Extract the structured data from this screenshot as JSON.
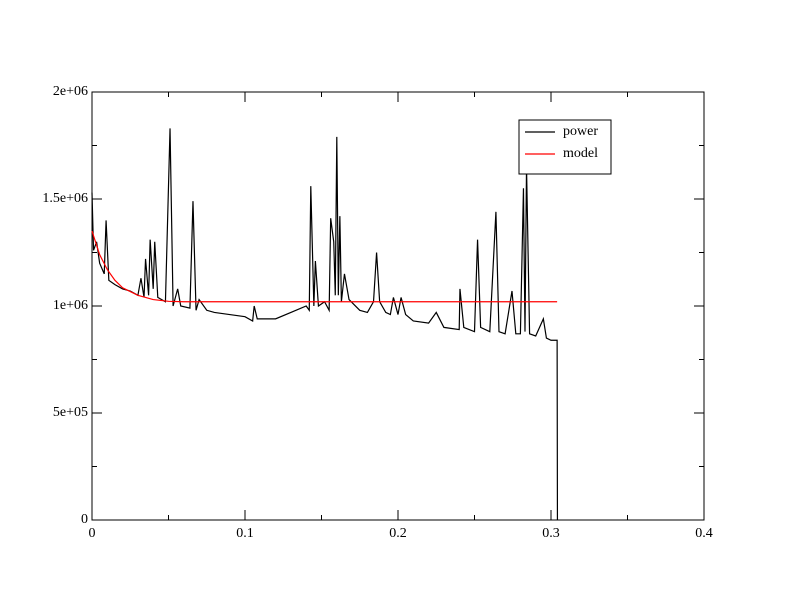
{
  "chart_data": {
    "type": "line",
    "xlim": [
      0,
      0.4
    ],
    "ylim": [
      0,
      2000000
    ],
    "xticks": [
      0,
      0.1,
      0.2,
      0.3,
      0.4
    ],
    "xminorticks": [
      0.05,
      0.15,
      0.25,
      0.35
    ],
    "yticks": [
      0,
      {
        "value": 500000,
        "label": "5e+05"
      },
      {
        "value": 1000000,
        "label": "1e+06"
      },
      {
        "value": 1500000,
        "label": "1.5e+06"
      },
      {
        "value": 2000000,
        "label": "2e+06"
      }
    ],
    "yminorticks": [
      250000,
      750000,
      1250000,
      1750000
    ],
    "legend": "upper right",
    "series": [
      {
        "name": "power",
        "color": "#000000",
        "x": [
          0,
          0.001,
          0.003,
          0.005,
          0.008,
          0.0092,
          0.011,
          0.015,
          0.02,
          0.025,
          0.03,
          0.032,
          0.034,
          0.035,
          0.037,
          0.038,
          0.04,
          0.041,
          0.043,
          0.048,
          0.051,
          0.053,
          0.056,
          0.058,
          0.064,
          0.066,
          0.068,
          0.07,
          0.075,
          0.08,
          0.09,
          0.1,
          0.105,
          0.106,
          0.108,
          0.12,
          0.13,
          0.14,
          0.142,
          0.143,
          0.145,
          0.146,
          0.148,
          0.152,
          0.155,
          0.156,
          0.158,
          0.159,
          0.16,
          0.161,
          0.162,
          0.163,
          0.165,
          0.168,
          0.175,
          0.18,
          0.184,
          0.186,
          0.188,
          0.192,
          0.195,
          0.197,
          0.2,
          0.202,
          0.205,
          0.21,
          0.22,
          0.225,
          0.23,
          0.24,
          0.2405,
          0.243,
          0.25,
          0.252,
          0.254,
          0.26,
          0.264,
          0.266,
          0.27,
          0.2745,
          0.277,
          0.28,
          0.282,
          0.283,
          0.284,
          0.286,
          0.29,
          0.295,
          0.297,
          0.3,
          0.304,
          0.3042
        ],
        "values": [
          1530000,
          1260000,
          1300000,
          1200000,
          1150000,
          1400000,
          1120000,
          1100000,
          1080000,
          1070000,
          1050000,
          1130000,
          1040000,
          1220000,
          1050000,
          1310000,
          1080000,
          1300000,
          1040000,
          1020000,
          1830000,
          1000000,
          1080000,
          1000000,
          990000,
          1490000,
          980000,
          1030000,
          980000,
          970000,
          960000,
          950000,
          930000,
          1000000,
          940000,
          940000,
          970000,
          1000000,
          980000,
          1560000,
          1000000,
          1210000,
          1000000,
          1020000,
          980000,
          1410000,
          1300000,
          1050000,
          1790000,
          1050000,
          1420000,
          1020000,
          1150000,
          1030000,
          980000,
          970000,
          1020000,
          1250000,
          1020000,
          970000,
          960000,
          1040000,
          960000,
          1040000,
          960000,
          930000,
          920000,
          970000,
          900000,
          890000,
          1080000,
          900000,
          880000,
          1310000,
          900000,
          880000,
          1440000,
          880000,
          870000,
          1070000,
          870000,
          870000,
          1550000,
          880000,
          1650000,
          870000,
          860000,
          940000,
          850000,
          840000,
          840000,
          0
        ]
      },
      {
        "name": "model",
        "color": "#ff0000",
        "x": [
          0,
          0.005,
          0.01,
          0.015,
          0.02,
          0.03,
          0.04,
          0.05,
          0.06,
          0.304
        ],
        "values": [
          1350000,
          1240000,
          1170000,
          1120000,
          1085000,
          1050000,
          1030000,
          1022000,
          1020000,
          1020000
        ]
      }
    ]
  }
}
